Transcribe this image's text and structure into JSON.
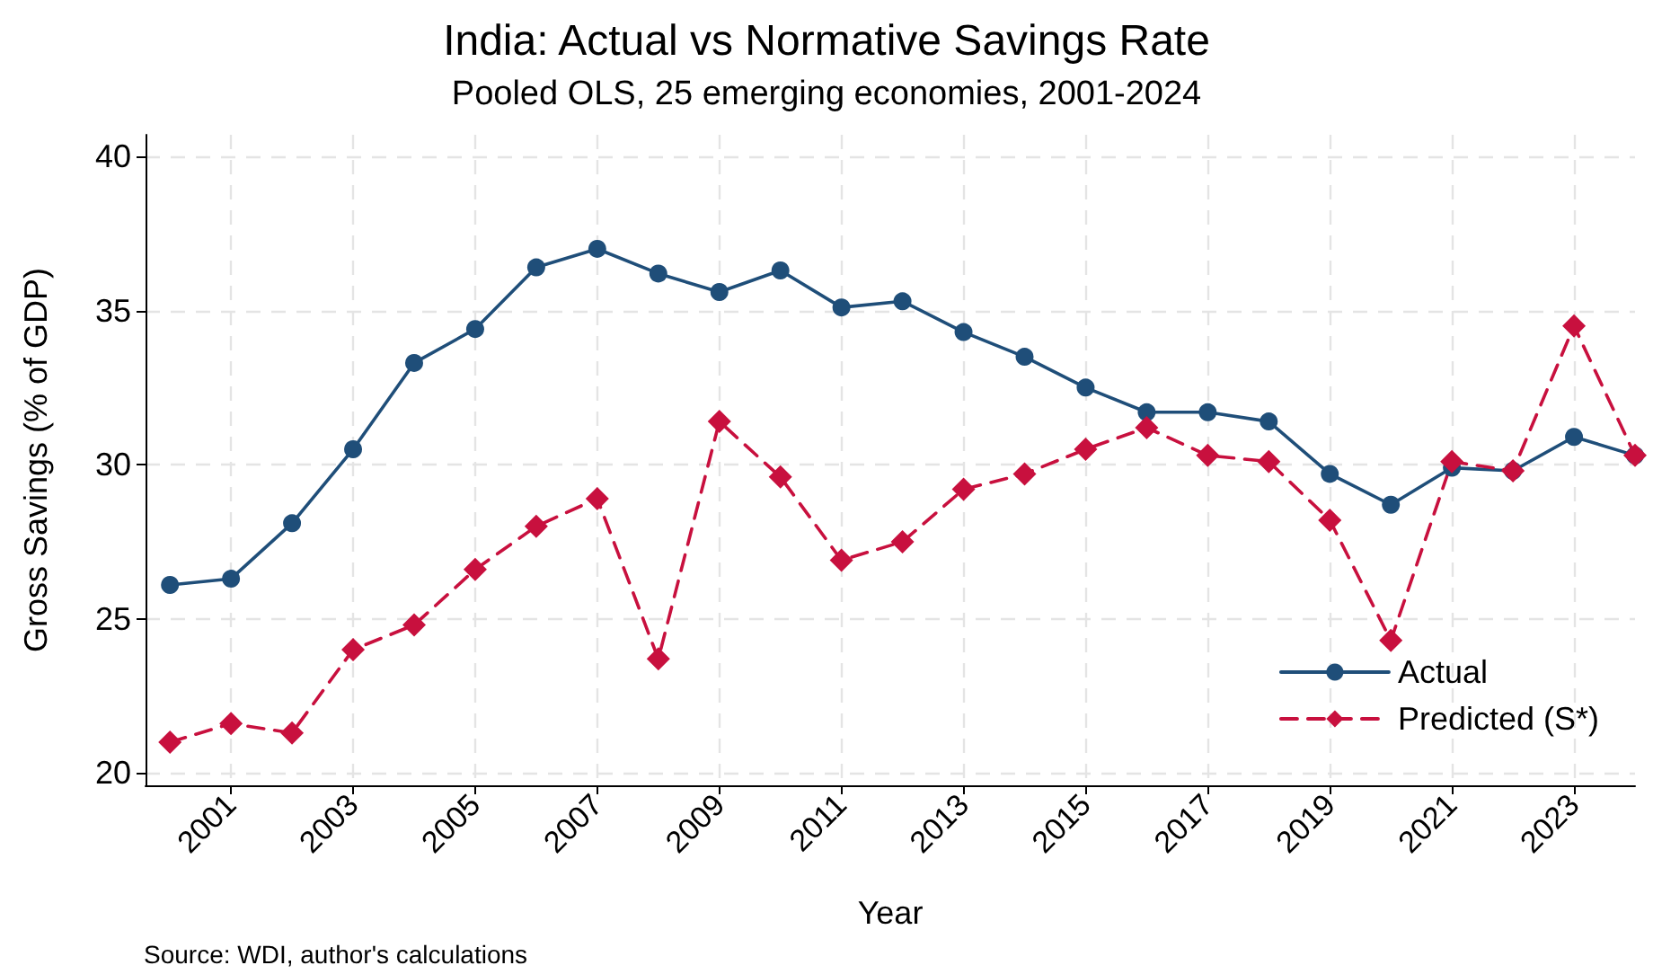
{
  "chart_data": {
    "type": "line",
    "title": "India: Actual vs Normative Savings Rate",
    "subtitle": "Pooled OLS, 25 emerging economies, 2001-2024",
    "xlabel": "Year",
    "ylabel": "Gross Savings (% of GDP)",
    "annotations": [
      "Source: WDI, author's calculations"
    ],
    "x": [
      2000,
      2001,
      2002,
      2003,
      2004,
      2005,
      2006,
      2007,
      2008,
      2009,
      2010,
      2011,
      2012,
      2013,
      2014,
      2015,
      2016,
      2017,
      2018,
      2019,
      2020,
      2021,
      2022,
      2023,
      2024
    ],
    "series": [
      {
        "name": "Actual",
        "color": "#1f4e79",
        "marker": "circle",
        "line_style": "solid",
        "values": [
          26.1,
          26.3,
          28.1,
          30.5,
          33.3,
          34.4,
          36.4,
          37.0,
          36.2,
          35.6,
          36.3,
          35.1,
          35.3,
          34.3,
          33.5,
          32.5,
          31.7,
          31.7,
          31.4,
          29.7,
          28.7,
          29.9,
          29.8,
          30.9,
          30.3
        ]
      },
      {
        "name": "Predicted (S*)",
        "color": "#c8103e",
        "marker": "diamond",
        "line_style": "dashed",
        "values": [
          21.0,
          21.6,
          21.3,
          24.0,
          24.8,
          26.6,
          28.0,
          28.9,
          23.7,
          31.4,
          29.6,
          26.9,
          27.5,
          29.2,
          29.7,
          30.5,
          31.2,
          30.3,
          30.1,
          28.2,
          24.3,
          30.1,
          29.8,
          34.5,
          30.3
        ]
      }
    ],
    "xlim": [
      1999.6,
      2024
    ],
    "xticks": [
      2001,
      2003,
      2005,
      2007,
      2009,
      2011,
      2013,
      2015,
      2017,
      2019,
      2021,
      2023
    ],
    "ylim": [
      19.6,
      40.7
    ],
    "yticks": [
      20,
      25,
      30,
      35,
      40
    ],
    "grid": true,
    "legend": "bottom right"
  }
}
